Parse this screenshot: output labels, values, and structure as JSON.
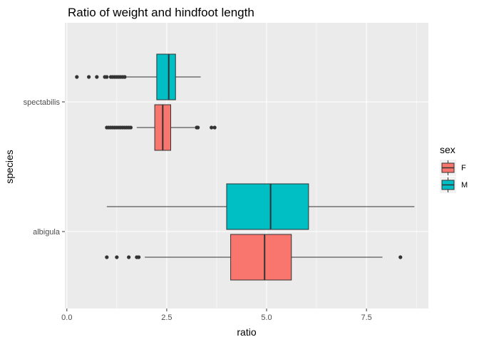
{
  "chart_data": {
    "type": "boxplot",
    "orientation": "horizontal",
    "title": "Ratio of weight and hindfoot length",
    "xlabel": "ratio",
    "ylabel": "species",
    "xlim": [
      -0.05,
      9.05
    ],
    "xticks": [
      0,
      2.5,
      5,
      7.5
    ],
    "xtick_labels": [
      "0.0",
      "2.5",
      "5.0",
      "7.5"
    ],
    "categories": [
      "albigula",
      "spectabilis"
    ],
    "grid": true,
    "legend": {
      "title": "sex",
      "position": "right",
      "entries": [
        {
          "label": "F",
          "color": "#F8766D"
        },
        {
          "label": "M",
          "color": "#00BFC4"
        }
      ]
    },
    "series": [
      {
        "name": "F",
        "color": "#F8766D",
        "boxes": [
          {
            "category": "albigula",
            "whisker_low": 1.95,
            "q1": 4.1,
            "median": 4.95,
            "q3": 5.62,
            "whisker_high": 7.9,
            "outliers": [
              1.0,
              1.25,
              1.55,
              1.75,
              1.8,
              8.35
            ]
          },
          {
            "category": "spectabilis",
            "whisker_low": 1.75,
            "q1": 2.2,
            "median": 2.4,
            "q3": 2.6,
            "whisker_high": 3.2,
            "outliers": [
              1.0,
              1.05,
              1.1,
              1.15,
              1.2,
              1.25,
              1.3,
              1.35,
              1.4,
              1.45,
              1.5,
              1.55,
              1.6,
              3.25,
              3.28,
              3.62,
              3.7
            ]
          }
        ]
      },
      {
        "name": "M",
        "color": "#00BFC4",
        "boxes": [
          {
            "category": "albigula",
            "whisker_low": 1.0,
            "q1": 4.0,
            "median": 5.1,
            "q3": 6.05,
            "whisker_high": 8.7,
            "outliers": []
          },
          {
            "category": "spectabilis",
            "whisker_low": 1.5,
            "q1": 2.25,
            "median": 2.55,
            "q3": 2.72,
            "whisker_high": 3.35,
            "outliers": [
              0.25,
              0.55,
              0.75,
              0.95,
              1.0,
              1.1,
              1.15,
              1.2,
              1.25,
              1.3,
              1.35,
              1.4,
              1.45
            ]
          }
        ]
      }
    ]
  }
}
